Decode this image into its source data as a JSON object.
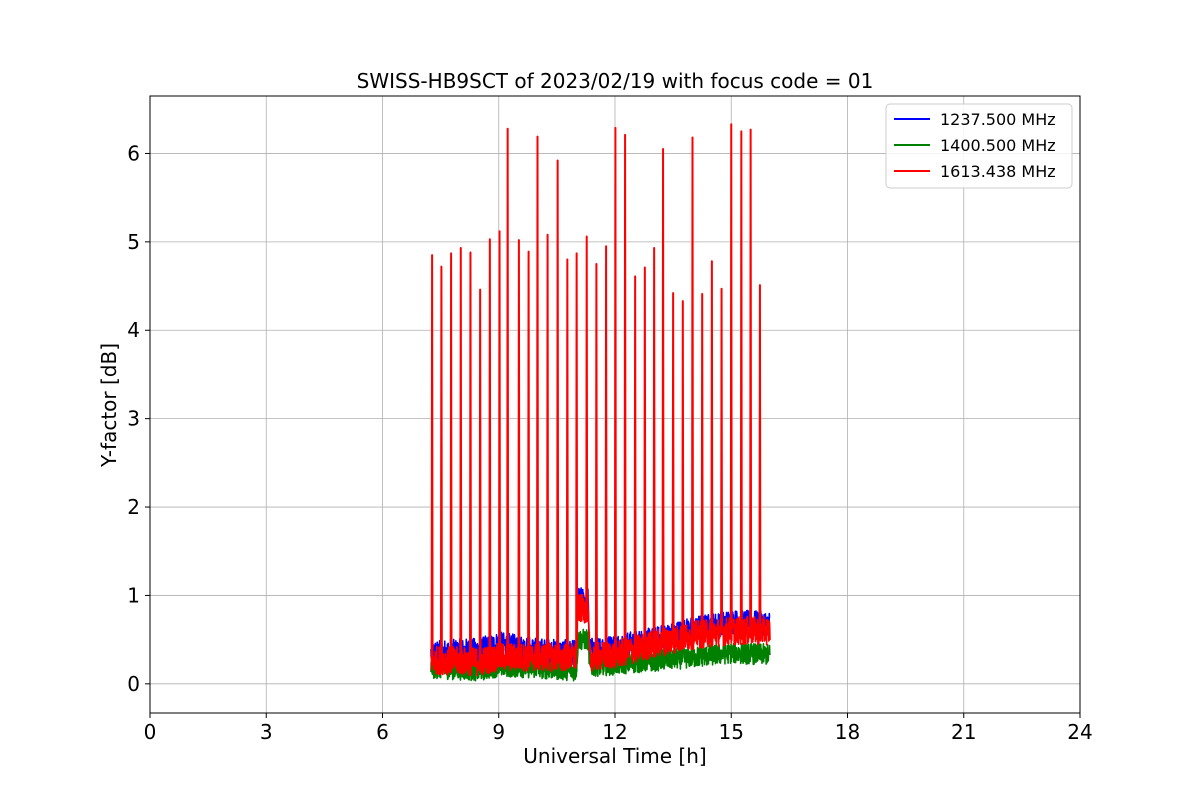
{
  "chart_data": {
    "type": "line",
    "title": "SWISS-HB9SCT of 2023/02/19 with focus code = 01",
    "xlabel": "Universal Time [h]",
    "ylabel": "Y-factor [dB]",
    "xlim": [
      0,
      24
    ],
    "ylim": [
      -0.33,
      6.65
    ],
    "xticks": [
      0,
      3,
      6,
      9,
      12,
      15,
      18,
      21,
      24
    ],
    "yticks": [
      0,
      1,
      2,
      3,
      4,
      5,
      6
    ],
    "grid": true,
    "legend_position": "top-right",
    "data_range_hours": [
      7.25,
      16.0
    ],
    "series": [
      {
        "name": "1237.500 MHz",
        "color": "#0000ff",
        "baseline": [
          [
            7.25,
            0.35
          ],
          [
            8.5,
            0.38
          ],
          [
            9.0,
            0.45
          ],
          [
            10.0,
            0.38
          ],
          [
            11.0,
            0.35
          ],
          [
            11.05,
            0.95
          ],
          [
            11.3,
            0.95
          ],
          [
            11.35,
            0.38
          ],
          [
            12.0,
            0.42
          ],
          [
            13.0,
            0.5
          ],
          [
            14.0,
            0.62
          ],
          [
            15.0,
            0.7
          ],
          [
            16.0,
            0.68
          ]
        ],
        "noise": 0.14
      },
      {
        "name": "1400.500 MHz",
        "color": "#008000",
        "baseline": [
          [
            7.25,
            0.18
          ],
          [
            8.5,
            0.15
          ],
          [
            9.0,
            0.2
          ],
          [
            10.0,
            0.18
          ],
          [
            11.0,
            0.15
          ],
          [
            11.05,
            0.5
          ],
          [
            11.3,
            0.5
          ],
          [
            11.35,
            0.2
          ],
          [
            12.0,
            0.22
          ],
          [
            13.0,
            0.26
          ],
          [
            14.0,
            0.3
          ],
          [
            15.0,
            0.35
          ],
          [
            16.0,
            0.33
          ]
        ],
        "noise": 0.12
      },
      {
        "name": "1613.438 MHz",
        "color": "#ff0000",
        "baseline": [
          [
            7.25,
            0.27
          ],
          [
            8.5,
            0.25
          ],
          [
            9.0,
            0.3
          ],
          [
            10.0,
            0.3
          ],
          [
            11.0,
            0.3
          ],
          [
            11.05,
            0.85
          ],
          [
            11.3,
            0.85
          ],
          [
            11.35,
            0.3
          ],
          [
            12.0,
            0.33
          ],
          [
            13.0,
            0.45
          ],
          [
            14.0,
            0.55
          ],
          [
            15.0,
            0.6
          ],
          [
            16.0,
            0.6
          ]
        ],
        "noise": 0.16,
        "peaks": [
          [
            7.28,
            4.85
          ],
          [
            7.52,
            4.72
          ],
          [
            7.77,
            4.87
          ],
          [
            8.02,
            4.93
          ],
          [
            8.27,
            4.88
          ],
          [
            8.52,
            4.46
          ],
          [
            8.77,
            5.03
          ],
          [
            9.02,
            5.12
          ],
          [
            9.23,
            6.28
          ],
          [
            9.52,
            5.02
          ],
          [
            9.77,
            4.89
          ],
          [
            10.0,
            6.19
          ],
          [
            10.26,
            5.08
          ],
          [
            10.52,
            5.92
          ],
          [
            10.77,
            4.8
          ],
          [
            11.01,
            4.87
          ],
          [
            11.27,
            5.06
          ],
          [
            11.52,
            4.75
          ],
          [
            11.77,
            4.95
          ],
          [
            12.01,
            6.29
          ],
          [
            12.26,
            6.21
          ],
          [
            12.52,
            4.61
          ],
          [
            12.77,
            4.71
          ],
          [
            13.01,
            4.93
          ],
          [
            13.24,
            6.05
          ],
          [
            13.5,
            4.42
          ],
          [
            13.75,
            4.33
          ],
          [
            14.0,
            6.18
          ],
          [
            14.25,
            4.41
          ],
          [
            14.5,
            4.78
          ],
          [
            14.75,
            4.47
          ],
          [
            15.0,
            6.33
          ],
          [
            15.26,
            6.25
          ],
          [
            15.5,
            6.27
          ],
          [
            15.74,
            4.51
          ]
        ]
      }
    ]
  }
}
